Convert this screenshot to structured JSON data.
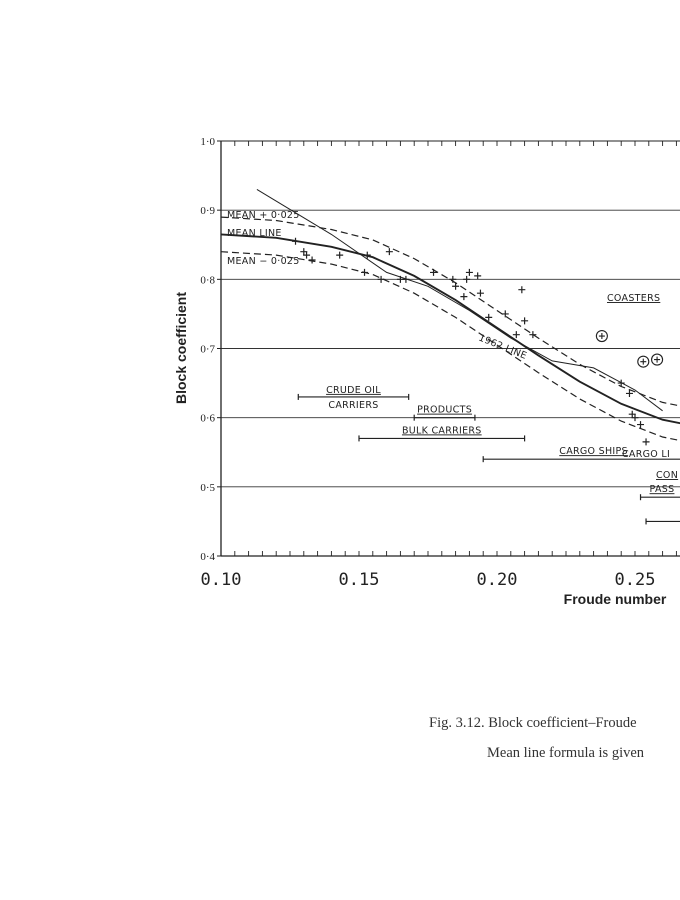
{
  "chart_data": {
    "type": "line",
    "xlabel": "Froude number",
    "ylabel": "Block coefficient",
    "xlim": [
      0.1,
      0.275
    ],
    "ylim": [
      0.4,
      1.0
    ],
    "x_ticks": [
      "0.10",
      "0.15",
      "0.20",
      "0.25"
    ],
    "y_ticks": [
      "0·4",
      "0·5",
      "0·6",
      "0·7",
      "0·8",
      "0·9",
      "1·0"
    ],
    "grid": "horizontal",
    "series": [
      {
        "name": "MEAN LINE",
        "style": "solid",
        "x": [
          0.1,
          0.12,
          0.14,
          0.155,
          0.17,
          0.185,
          0.2,
          0.215,
          0.23,
          0.245,
          0.26,
          0.275
        ],
        "y": [
          0.865,
          0.86,
          0.847,
          0.832,
          0.805,
          0.77,
          0.73,
          0.69,
          0.652,
          0.62,
          0.597,
          0.585
        ]
      },
      {
        "name": "MEAN + 0·025",
        "style": "dashed",
        "x": [
          0.1,
          0.12,
          0.14,
          0.155,
          0.17,
          0.185,
          0.2,
          0.215,
          0.23,
          0.245,
          0.26,
          0.275
        ],
        "y": [
          0.89,
          0.885,
          0.872,
          0.857,
          0.83,
          0.795,
          0.755,
          0.715,
          0.677,
          0.645,
          0.622,
          0.61
        ]
      },
      {
        "name": "MEAN − 0·025",
        "style": "dashed",
        "x": [
          0.1,
          0.12,
          0.14,
          0.155,
          0.17,
          0.185,
          0.2,
          0.215,
          0.23,
          0.245,
          0.26,
          0.275
        ],
        "y": [
          0.84,
          0.835,
          0.822,
          0.807,
          0.78,
          0.745,
          0.705,
          0.665,
          0.627,
          0.595,
          0.572,
          0.56
        ]
      },
      {
        "name": "1962 LINE",
        "style": "thin",
        "x": [
          0.113,
          0.14,
          0.16,
          0.175,
          0.19,
          0.205,
          0.22,
          0.235,
          0.25,
          0.26
        ],
        "y": [
          0.93,
          0.865,
          0.81,
          0.79,
          0.755,
          0.715,
          0.682,
          0.672,
          0.64,
          0.61
        ]
      }
    ],
    "scatter": {
      "x": [
        0.127,
        0.13,
        0.131,
        0.133,
        0.143,
        0.152,
        0.153,
        0.158,
        0.161,
        0.165,
        0.167,
        0.177,
        0.184,
        0.185,
        0.188,
        0.189,
        0.19,
        0.193,
        0.194,
        0.197,
        0.203,
        0.207,
        0.209,
        0.21,
        0.213,
        0.245,
        0.248,
        0.249,
        0.25,
        0.252,
        0.254
      ],
      "y": [
        0.855,
        0.84,
        0.835,
        0.828,
        0.835,
        0.81,
        0.835,
        0.8,
        0.84,
        0.8,
        0.8,
        0.81,
        0.8,
        0.79,
        0.775,
        0.8,
        0.81,
        0.805,
        0.78,
        0.745,
        0.75,
        0.72,
        0.785,
        0.74,
        0.72,
        0.65,
        0.635,
        0.605,
        0.6,
        0.59,
        0.565
      ]
    },
    "circled_points": {
      "x": [
        0.238,
        0.253,
        0.258
      ],
      "y": [
        0.718,
        0.681,
        0.684
      ]
    },
    "range_bars": [
      {
        "label": "CRUDE OIL",
        "label2": "CARRIERS",
        "x": [
          0.128,
          0.168
        ],
        "y": 0.63
      },
      {
        "label": "PRODUCTS",
        "x": [
          0.17,
          0.192
        ],
        "y": 0.6
      },
      {
        "label": "BULK CARRIERS",
        "x": [
          0.15,
          0.21
        ],
        "y": 0.57
      },
      {
        "label": "CARGO SHIPS",
        "x": [
          0.195,
          0.275
        ],
        "y": 0.54
      },
      {
        "label": "PASS",
        "x": [
          0.252,
          0.275
        ],
        "y": 0.485
      },
      {
        "label": "",
        "x": [
          0.254,
          0.275
        ],
        "y": 0.45
      }
    ],
    "annotations": {
      "mean_plus": "MEAN + 0·025",
      "mean_line": "MEAN LINE",
      "mean_minus": "MEAN − 0·025",
      "line_1962": "1962 LINE",
      "coasters": "COASTERS",
      "cargo_liners": "CARGO LI",
      "con": "CON"
    }
  },
  "caption": {
    "line1": "Fig. 3.12. Block coefficient–Froude",
    "line2": "Mean line formula is given"
  }
}
